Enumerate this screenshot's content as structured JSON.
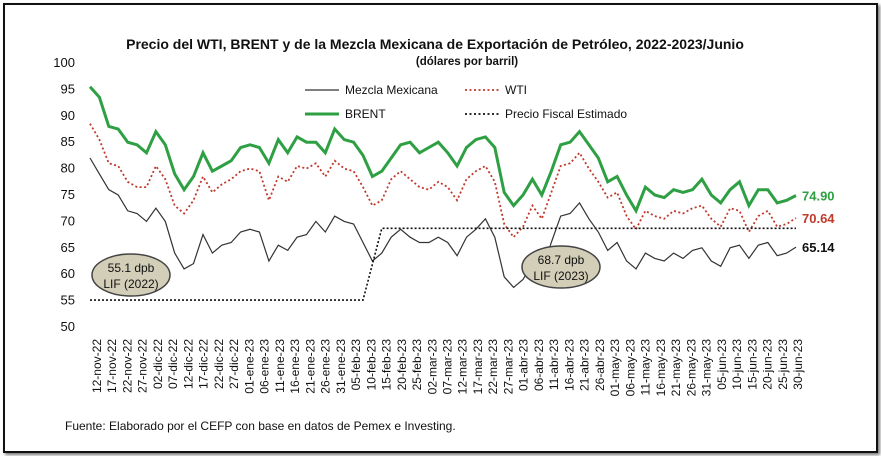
{
  "chart_data": {
    "type": "line",
    "title": "Precio del WTI, BRENT y de la Mezcla Mexicana de Exportación de Petróleo, 2022-2023/Junio",
    "subtitle": "(dólares por barril)",
    "ylim": [
      50,
      100
    ],
    "yticks": [
      "100",
      "95",
      "90",
      "85",
      "80",
      "75",
      "70",
      "65",
      "60",
      "55",
      "50"
    ],
    "grid": false,
    "legend_position": "top-left",
    "x_tick_labels": [
      "12-nov-22",
      "17-nov-22",
      "22-nov-22",
      "27-nov-22",
      "02-dic-22",
      "07-dic-22",
      "12-dic-22",
      "17-dic-22",
      "22-dic-22",
      "27-dic-22",
      "01-ene-23",
      "06-ene-23",
      "11-ene-23",
      "16-ene-23",
      "21-ene-23",
      "26-ene-23",
      "31-ene-23",
      "05-feb-23",
      "10-feb-23",
      "15-feb-23",
      "20-feb-23",
      "25-feb-23",
      "02-mar-23",
      "07-mar-23",
      "12-mar-23",
      "17-mar-23",
      "22-mar-23",
      "27-mar-23",
      "01-abr-23",
      "06-abr-23",
      "11-abr-23",
      "16-abr-23",
      "21-abr-23",
      "26-abr-23",
      "01-may-23",
      "06-may-23",
      "11-may-23",
      "16-may-23",
      "21-may-23",
      "26-may-23",
      "31-may-23",
      "05-jun-23",
      "10-jun-23",
      "15-jun-23",
      "20-jun-23",
      "25-jun-23",
      "30-jun-23"
    ],
    "series": [
      {
        "name": "BRENT",
        "color": "#2ea043",
        "style": "solid",
        "end_label": "74.90",
        "values": [
          95.5,
          93.5,
          88.0,
          87.5,
          85.0,
          84.5,
          83.0,
          87.0,
          84.5,
          79.0,
          76.0,
          78.5,
          83.0,
          79.5,
          80.5,
          81.5,
          84.0,
          84.5,
          84.0,
          81.0,
          85.5,
          83.0,
          86.0,
          85.0,
          85.0,
          83.0,
          87.5,
          85.5,
          85.0,
          82.5,
          78.5,
          79.5,
          82.0,
          84.5,
          85.0,
          83.0,
          84.0,
          85.0,
          83.0,
          80.5,
          84.0,
          85.5,
          86.0,
          84.0,
          75.5,
          73.0,
          75.0,
          78.0,
          75.0,
          79.5,
          84.5,
          85.0,
          87.0,
          84.5,
          82.0,
          77.5,
          78.5,
          75.0,
          72.0,
          76.5,
          75.0,
          74.5,
          76.0,
          75.5,
          76.0,
          78.0,
          75.0,
          73.5,
          76.0,
          77.5,
          73.0,
          76.0,
          76.0,
          73.5,
          74.0,
          74.9
        ]
      },
      {
        "name": "WTI",
        "color": "#c0392b",
        "style": "dotted",
        "end_label": "70.64",
        "values": [
          88.5,
          85.5,
          81.0,
          80.5,
          77.5,
          76.5,
          76.5,
          80.5,
          78.0,
          73.0,
          71.5,
          74.0,
          78.5,
          75.5,
          77.0,
          78.0,
          79.5,
          80.0,
          79.5,
          74.0,
          78.5,
          77.5,
          80.5,
          80.0,
          81.0,
          78.5,
          81.5,
          80.0,
          79.5,
          76.5,
          73.0,
          74.0,
          78.0,
          79.5,
          78.0,
          76.5,
          76.0,
          77.5,
          76.5,
          74.0,
          78.0,
          79.5,
          80.5,
          77.5,
          69.5,
          67.0,
          69.0,
          73.0,
          70.5,
          75.5,
          80.5,
          81.0,
          83.0,
          80.0,
          77.5,
          74.5,
          75.5,
          71.0,
          68.5,
          72.0,
          71.0,
          70.5,
          72.0,
          71.5,
          72.5,
          73.0,
          70.5,
          69.0,
          72.5,
          72.0,
          68.0,
          71.0,
          72.0,
          69.0,
          69.5,
          70.64
        ]
      },
      {
        "name": "Mezcla Mexicana",
        "color": "#333333",
        "style": "solid",
        "end_label": "65.14",
        "values": [
          82.0,
          79.0,
          76.0,
          75.0,
          72.0,
          71.5,
          70.0,
          72.5,
          70.0,
          64.0,
          61.0,
          62.0,
          67.5,
          64.0,
          65.5,
          66.0,
          68.0,
          68.5,
          68.0,
          62.5,
          65.5,
          64.5,
          67.0,
          67.5,
          70.0,
          68.0,
          71.0,
          70.0,
          69.5,
          66.0,
          62.5,
          64.0,
          67.0,
          68.5,
          67.0,
          66.0,
          66.0,
          67.0,
          66.0,
          63.5,
          67.0,
          68.5,
          70.5,
          67.0,
          59.5,
          57.5,
          59.0,
          62.0,
          60.5,
          66.0,
          71.0,
          71.5,
          73.5,
          70.5,
          68.0,
          64.5,
          66.0,
          62.5,
          61.0,
          64.0,
          63.0,
          62.5,
          64.0,
          63.0,
          64.5,
          65.0,
          62.5,
          61.5,
          65.0,
          65.5,
          63.0,
          65.5,
          66.0,
          63.5,
          64.0,
          65.14
        ]
      },
      {
        "name": "Precio Fiscal Estimado",
        "color": "#111111",
        "style": "dotted",
        "segments": [
          {
            "from": 0,
            "to": 29,
            "value": 55.1
          },
          {
            "from": 31,
            "to": 75,
            "value": 68.7
          }
        ]
      }
    ],
    "annotations": [
      {
        "line1": "55.1 dpb",
        "line2": "LIF (2022)"
      },
      {
        "line1": "68.7 dpb",
        "line2": "LIF (2023)"
      }
    ]
  },
  "source": "Fuente: Elaborado por el CEFP con base en datos de Pemex e Investing."
}
